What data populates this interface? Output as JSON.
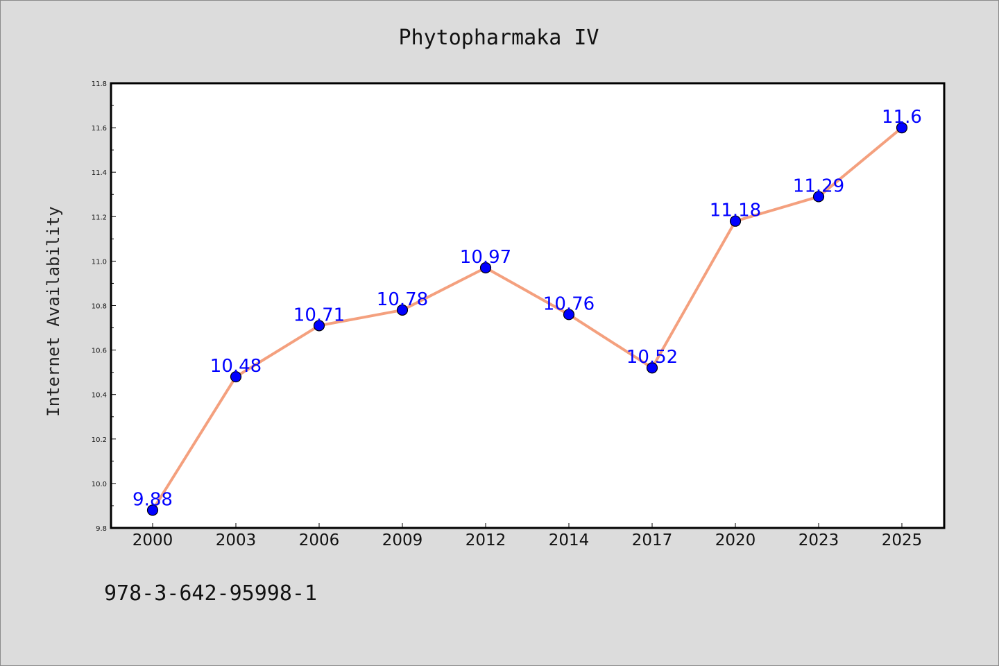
{
  "chart_data": {
    "type": "line",
    "title": "Phytopharmaka IV",
    "xlabel": "",
    "ylabel": "Internet Availability",
    "categories": [
      "2000",
      "2003",
      "2006",
      "2009",
      "2012",
      "2014",
      "2017",
      "2020",
      "2023",
      "2025"
    ],
    "series": [
      {
        "values": [
          9.88,
          10.48,
          10.71,
          10.78,
          10.97,
          10.76,
          10.52,
          11.18,
          11.29,
          11.6
        ],
        "data_labels": [
          "9.88",
          "10.48",
          "10.71",
          "10.78",
          "10.97",
          "10.76",
          "10.52",
          "11.18",
          "11.29",
          "11.6"
        ],
        "line_color": "#f4a07e",
        "marker_color": "#0000ff"
      }
    ],
    "ylim": [
      9.8,
      11.8
    ],
    "yticks": [
      "9.8",
      "10.0",
      "10.2",
      "10.4",
      "10.6",
      "10.8",
      "11.0",
      "11.2",
      "11.4",
      "11.6",
      "11.8"
    ],
    "grid": false,
    "legend": "none",
    "label_color": "#0000ff"
  },
  "footer": {
    "isbn": "978-3-642-95998-1"
  },
  "colors": {
    "background": "#dcdcdc",
    "plot_background": "#ffffff",
    "line": "#f4a07e",
    "marker": "#0000ff"
  }
}
